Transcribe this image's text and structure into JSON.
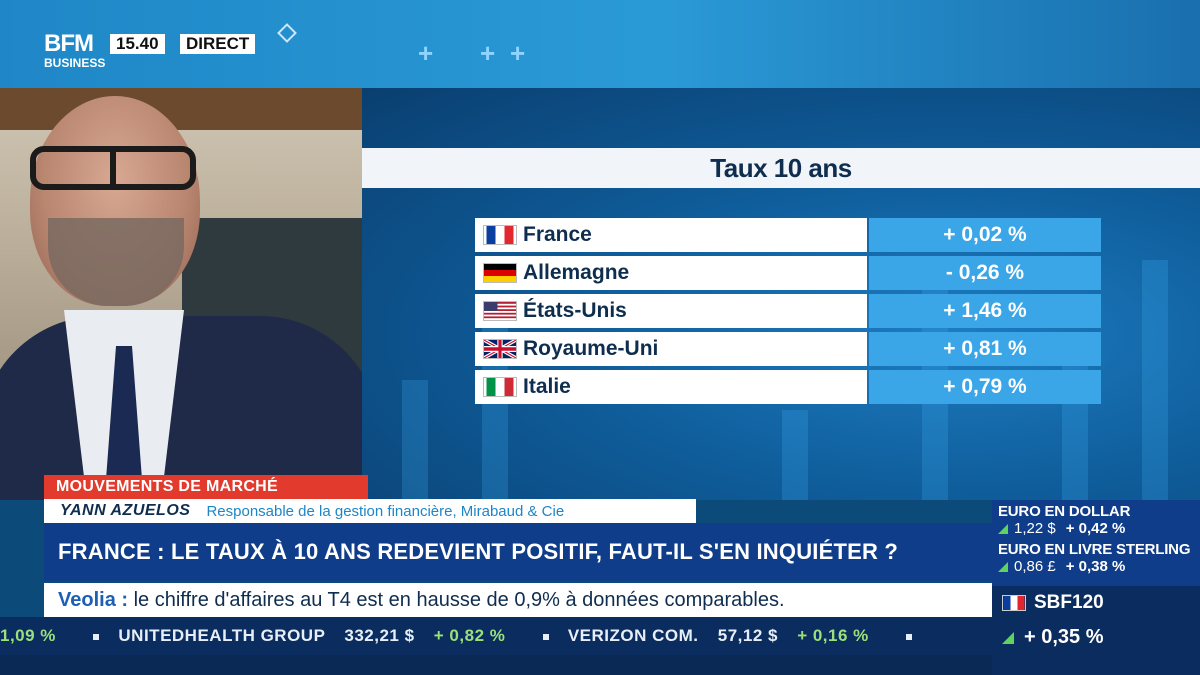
{
  "brand": {
    "line1": "BFM",
    "line2": "BUSINESS"
  },
  "broadcast": {
    "time": "15.40",
    "status": "DIRECT"
  },
  "rates_panel": {
    "title": "Taux 10 ans",
    "rows": [
      {
        "country": "France",
        "flag": "flag-france-icon",
        "value": "+ 0,02 %"
      },
      {
        "country": "Allemagne",
        "flag": "flag-germany-icon",
        "value": "- 0,26 %"
      },
      {
        "country": "États-Unis",
        "flag": "flag-usa-icon",
        "value": "+ 1,46 %"
      },
      {
        "country": "Royaume-Uni",
        "flag": "flag-uk-icon",
        "value": "+ 0,81 %"
      },
      {
        "country": "Italie",
        "flag": "flag-italy-icon",
        "value": "+ 0,79 %"
      }
    ]
  },
  "lower_third": {
    "tag": "MOUVEMENTS DE MARCHÉ",
    "guest_name": "YANN AZUELOS",
    "guest_role": "Responsable de la gestion financière, Mirabaud & Cie",
    "headline": "FRANCE : LE TAUX À 10 ANS REDEVIENT POSITIF, FAUT-IL S'EN INQUIÉTER ?"
  },
  "news": {
    "company": "Veolia :",
    "text": "le chiffre d'affaires au T4 est en hausse de 0,9% à données comparables."
  },
  "ticker": [
    {
      "name": "",
      "price": "",
      "change": "1,09 %"
    },
    {
      "name": "UNITEDHEALTH GROUP",
      "price": "332,21 $",
      "change": "+ 0,82 %"
    },
    {
      "name": "VERIZON COM.",
      "price": "57,12 $",
      "change": "+ 0,16 %"
    }
  ],
  "market": {
    "eur_usd": {
      "title": "EURO EN DOLLAR",
      "value": "1,22 $",
      "change": "+ 0,42 %"
    },
    "eur_gbp": {
      "title": "EURO EN LIVRE STERLING",
      "value": "0,86 £",
      "change": "+ 0,38 %"
    },
    "index": {
      "title": "SBF120",
      "change": "+ 0,35 %"
    }
  },
  "colors": {
    "accent_blue": "#3aa6e8",
    "headline_blue": "#0f3d8a",
    "tag_red": "#e23b2e",
    "up_green": "#5fd35f"
  }
}
